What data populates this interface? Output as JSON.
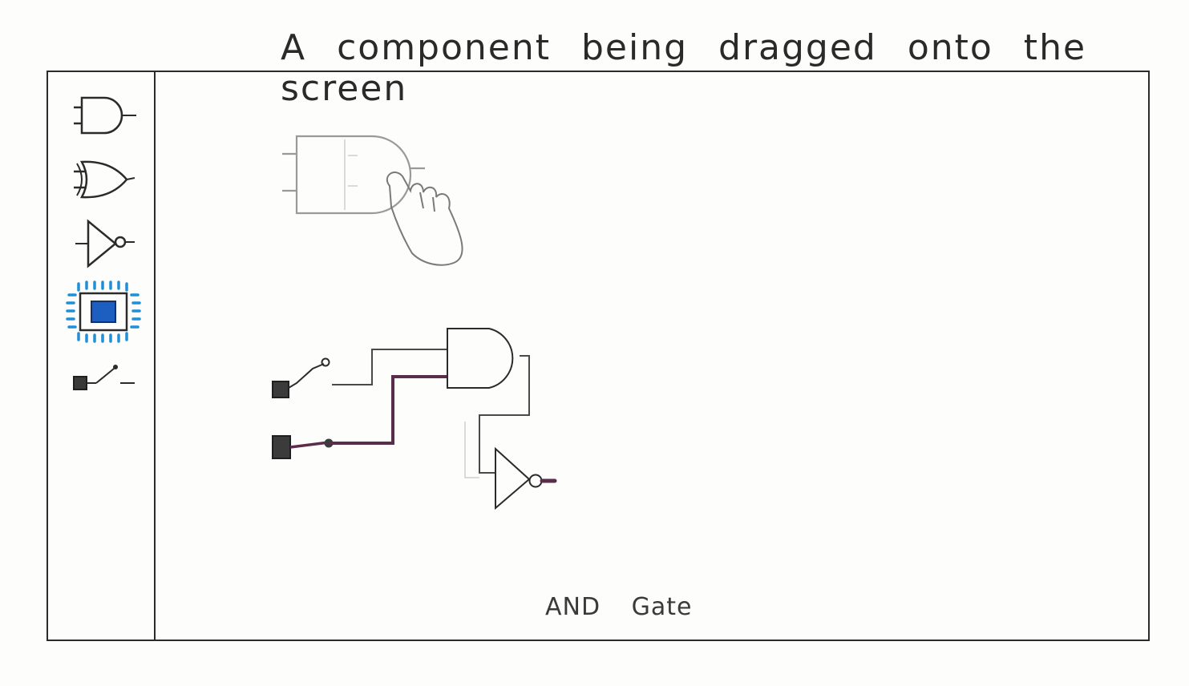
{
  "caption": "A component being dragged onto the screen",
  "status_label": "AND Gate",
  "toolbox": {
    "items": [
      {
        "name": "and-gate-tool"
      },
      {
        "name": "or-gate-tool"
      },
      {
        "name": "not-gate-tool"
      },
      {
        "name": "led-output-tool",
        "selected": true
      },
      {
        "name": "switch-input-tool"
      }
    ]
  },
  "colors": {
    "ink": "#2b2b2b",
    "selection_glow": "#1f8fd6",
    "led_fill": "#1c5fc0",
    "active_wire": "#5a2d4a",
    "ghost": "#9a9a9a"
  }
}
